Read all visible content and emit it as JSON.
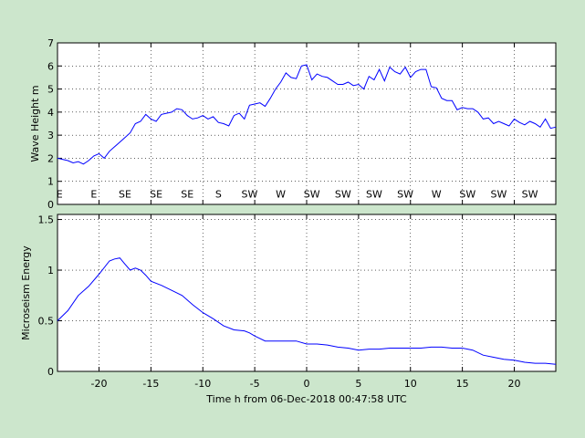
{
  "figure": {
    "background": "#cce6cc",
    "plot_background": "#ffffff",
    "line_color": "#0000ff"
  },
  "chart_data": [
    {
      "type": "line",
      "title": "",
      "xlabel": "",
      "ylabel": "Wave Height m",
      "xlim": [
        -24,
        24
      ],
      "ylim": [
        0,
        7
      ],
      "xticks": [
        -20,
        -15,
        -10,
        -5,
        0,
        5,
        10,
        15,
        20
      ],
      "xtick_labels_shown": false,
      "yticks": [
        0,
        1,
        2,
        3,
        4,
        5,
        6,
        7
      ],
      "ytick_labels": [
        "0",
        "1",
        "2",
        "3",
        "4",
        "5",
        "6",
        "7"
      ],
      "grid": true,
      "series": [
        {
          "x": [
            -24,
            -23,
            -22.5,
            -22,
            -21.5,
            -21,
            -20.5,
            -20,
            -19.5,
            -19,
            -18.5,
            -18,
            -17.5,
            -17,
            -16.5,
            -16,
            -15.5,
            -15,
            -14.5,
            -14,
            -13.5,
            -13,
            -12.5,
            -12,
            -11.5,
            -11,
            -10.5,
            -10,
            -9.5,
            -9,
            -8.5,
            -8,
            -7.5,
            -7,
            -6.5,
            -6,
            -5.5,
            -5,
            -4.5,
            -4,
            -3.5,
            -3,
            -2.5,
            -2,
            -1.5,
            -1,
            -0.5,
            0,
            0.5,
            1,
            1.5,
            2,
            2.5,
            3,
            3.5,
            4,
            4.5,
            5,
            5.5,
            6,
            6.5,
            7,
            7.5,
            8,
            8.5,
            9,
            9.5,
            10,
            10.5,
            11,
            11.5,
            12,
            12.5,
            13,
            13.5,
            14,
            14.5,
            15,
            15.5,
            16,
            16.5,
            17,
            17.5,
            18,
            18.5,
            19,
            19.5,
            20,
            20.5,
            21,
            21.5,
            22,
            22.5,
            23,
            23.5,
            24
          ],
          "y": [
            2.0,
            1.9,
            1.8,
            1.85,
            1.75,
            1.9,
            2.1,
            2.2,
            2.0,
            2.3,
            2.5,
            2.7,
            2.9,
            3.1,
            3.5,
            3.6,
            3.9,
            3.7,
            3.6,
            3.9,
            3.95,
            4.0,
            4.15,
            4.1,
            3.85,
            3.7,
            3.75,
            3.85,
            3.7,
            3.8,
            3.55,
            3.5,
            3.4,
            3.85,
            3.95,
            3.7,
            4.3,
            4.35,
            4.4,
            4.25,
            4.6,
            5.0,
            5.3,
            5.7,
            5.5,
            5.45,
            6.0,
            6.05,
            5.4,
            5.65,
            5.55,
            5.5,
            5.35,
            5.2,
            5.2,
            5.3,
            5.15,
            5.2,
            5.0,
            5.55,
            5.4,
            5.85,
            5.35,
            5.95,
            5.75,
            5.65,
            5.95,
            5.5,
            5.75,
            5.85,
            5.85,
            5.1,
            5.05,
            4.6,
            4.5,
            4.5,
            4.1,
            4.2,
            4.15,
            4.15,
            4.0,
            3.7,
            3.75,
            3.5,
            3.6,
            3.5,
            3.4,
            3.7,
            3.55,
            3.45,
            3.6,
            3.5,
            3.35,
            3.7,
            3.3,
            3.35
          ]
        }
      ],
      "annotations": [
        {
          "x": -23.8,
          "text": "E"
        },
        {
          "x": -20.5,
          "text": "E"
        },
        {
          "x": -17.5,
          "text": "SE"
        },
        {
          "x": -14.5,
          "text": "SE"
        },
        {
          "x": -11.5,
          "text": "SE"
        },
        {
          "x": -8.5,
          "text": "S"
        },
        {
          "x": -5.5,
          "text": "SW"
        },
        {
          "x": -2.5,
          "text": "W"
        },
        {
          "x": 0.5,
          "text": "SW"
        },
        {
          "x": 3.5,
          "text": "SW"
        },
        {
          "x": 6.5,
          "text": "SW"
        },
        {
          "x": 9.5,
          "text": "SW"
        },
        {
          "x": 12.5,
          "text": "W"
        },
        {
          "x": 15.5,
          "text": "SW"
        },
        {
          "x": 18.5,
          "text": "SW"
        },
        {
          "x": 21.5,
          "text": "SW"
        }
      ],
      "annotation_y": 0.3
    },
    {
      "type": "line",
      "title": "",
      "xlabel": "Time h from 06-Dec-2018 00:47:58 UTC",
      "ylabel": "Microseism Energy",
      "xlim": [
        -24,
        24
      ],
      "ylim": [
        0,
        1.55
      ],
      "xticks": [
        -20,
        -15,
        -10,
        -5,
        0,
        5,
        10,
        15,
        20
      ],
      "xtick_labels": [
        "-20",
        "-15",
        "-10",
        "-5",
        "0",
        "5",
        "10",
        "15",
        "20"
      ],
      "xtick_labels_shown": true,
      "yticks": [
        0,
        0.5,
        1,
        1.5
      ],
      "ytick_labels": [
        "0",
        "0.5",
        "1",
        "1.5"
      ],
      "grid": true,
      "series": [
        {
          "x": [
            -24,
            -23,
            -22,
            -21,
            -20,
            -19,
            -18.5,
            -18,
            -17.5,
            -17,
            -16.5,
            -16,
            -15.5,
            -15,
            -14,
            -13,
            -12,
            -11,
            -10,
            -9,
            -8,
            -7,
            -6,
            -5.5,
            -5,
            -4,
            -3,
            -2,
            -1,
            0,
            1,
            2,
            3,
            4,
            5,
            6,
            7,
            8,
            9,
            10,
            11,
            12,
            13,
            14,
            15,
            16,
            17,
            18,
            19,
            20,
            21,
            22,
            23,
            24
          ],
          "y": [
            0.5,
            0.6,
            0.75,
            0.84,
            0.96,
            1.09,
            1.11,
            1.12,
            1.06,
            1.0,
            1.02,
            1.0,
            0.95,
            0.89,
            0.85,
            0.8,
            0.75,
            0.66,
            0.58,
            0.52,
            0.45,
            0.41,
            0.4,
            0.38,
            0.35,
            0.3,
            0.3,
            0.3,
            0.3,
            0.27,
            0.27,
            0.26,
            0.24,
            0.23,
            0.21,
            0.22,
            0.22,
            0.23,
            0.23,
            0.23,
            0.23,
            0.24,
            0.24,
            0.23,
            0.23,
            0.21,
            0.16,
            0.14,
            0.12,
            0.11,
            0.09,
            0.08,
            0.08,
            0.07
          ]
        }
      ]
    }
  ]
}
